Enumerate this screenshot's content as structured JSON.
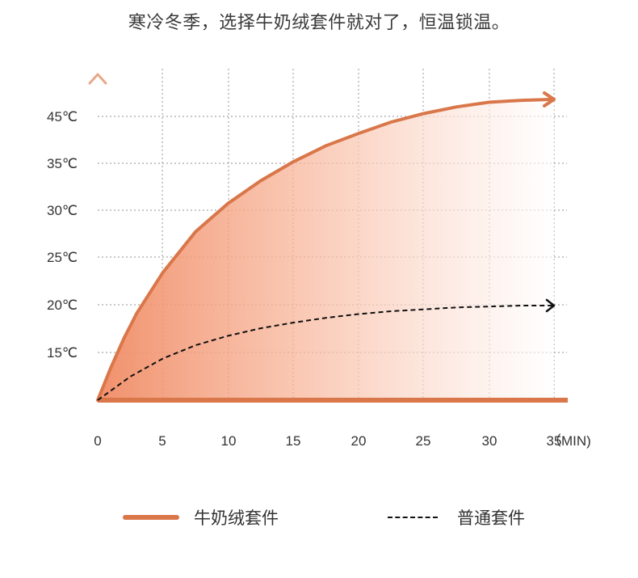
{
  "headline": "寒冷冬季，选择牛奶绒套件就对了，恒温锁温。",
  "colors": {
    "accent": "#d9774a",
    "dash": "#111111",
    "grid": "#a8a8a8"
  },
  "chart_data": {
    "type": "line",
    "x_ticks": [
      "0",
      "5",
      "10",
      "15",
      "20",
      "25",
      "30",
      "35"
    ],
    "x_unit": "（MIN)",
    "y_ticks": [
      "15℃",
      "20℃",
      "25℃",
      "30℃",
      "35℃",
      "45℃"
    ],
    "xlim": [
      0,
      35
    ],
    "grid": true,
    "series": [
      {
        "name": "牛奶绒套件",
        "style": "solid-filled",
        "color": "#d9774a",
        "x": [
          0,
          1,
          2,
          3,
          5,
          7.5,
          10,
          12.5,
          15,
          17.5,
          20,
          22.5,
          25,
          27.5,
          30,
          32.5,
          35
        ],
        "y": [
          10,
          13.4,
          16.5,
          19.2,
          23.5,
          27.8,
          30.8,
          33.2,
          35.2,
          36.9,
          38.2,
          39.4,
          40.3,
          41.0,
          41.5,
          41.7,
          41.8
        ]
      },
      {
        "name": "普通套件",
        "style": "dashed",
        "color": "#111111",
        "x": [
          0,
          2.5,
          5,
          7.5,
          10,
          12.5,
          15,
          17.5,
          20,
          22.5,
          25,
          27.5,
          30,
          32.5,
          35
        ],
        "y": [
          10,
          12.5,
          14.4,
          15.8,
          16.8,
          17.6,
          18.2,
          18.7,
          19.1,
          19.4,
          19.6,
          19.8,
          19.9,
          20.0,
          20.0
        ]
      }
    ]
  },
  "legend": {
    "solid_label": "牛奶绒套件",
    "dashed_label": "普通套件"
  }
}
